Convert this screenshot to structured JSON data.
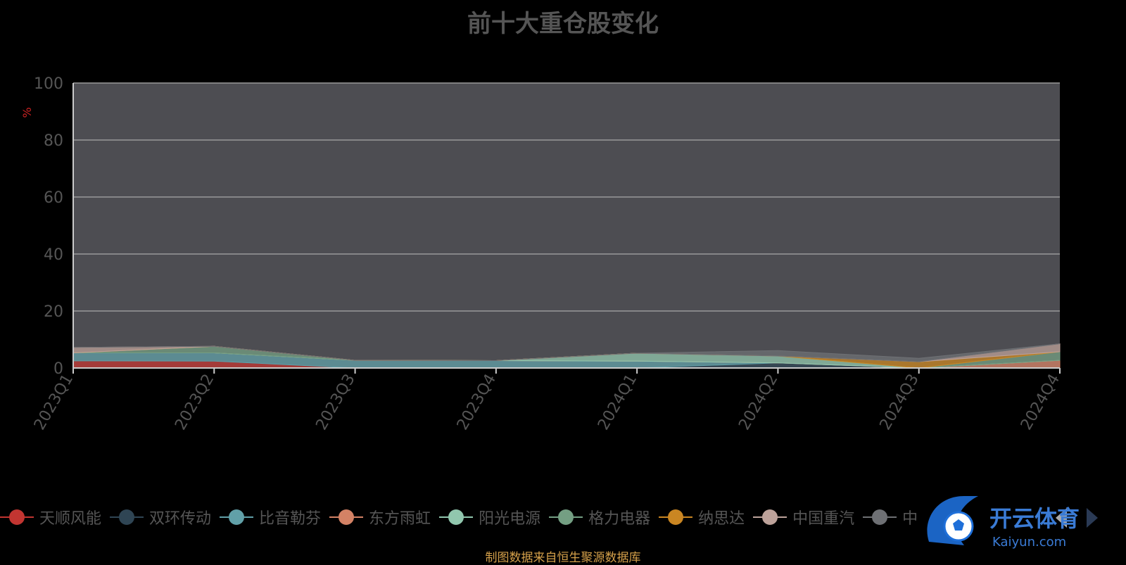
{
  "colors": {
    "background": "#000000",
    "plot_background": "#4d4d52",
    "grid": "#9a9a9a",
    "axis_text": "#555555",
    "unit_color": "#cc2222",
    "source_color": "#d4a04a"
  },
  "source_note": "制图数据来自恒生聚源数据库",
  "watermark": {
    "text": "开云体育",
    "subtext": "Kaiyun.com"
  },
  "legend_nav": {
    "prev_icon": "chevron-left-icon",
    "next_icon": "chevron-right-icon"
  },
  "chart_data": {
    "type": "area",
    "title": "前十大重仓股变化",
    "ylabel": "%",
    "xlabel": "",
    "ylim": [
      0,
      100
    ],
    "yticks": [
      0,
      20,
      40,
      60,
      80,
      100
    ],
    "stacked": true,
    "grid": true,
    "legend_position": "bottom",
    "categories": [
      "2023Q1",
      "2023Q2",
      "2023Q3",
      "2023Q4",
      "2024Q1",
      "2024Q2",
      "2024Q3",
      "2024Q4"
    ],
    "series": [
      {
        "name": "天顺风能",
        "color": "#c23531",
        "values": [
          2.5,
          2.4,
          0,
          0,
          0,
          0,
          0,
          0
        ]
      },
      {
        "name": "双环传动",
        "color": "#2f4554",
        "values": [
          0,
          0,
          0,
          0,
          0,
          1.8,
          0,
          0
        ]
      },
      {
        "name": "比音勒芬",
        "color": "#61a0a8",
        "values": [
          2.8,
          2.9,
          2.7,
          2.6,
          2.4,
          0,
          0,
          0
        ]
      },
      {
        "name": "东方雨虹",
        "color": "#d48265",
        "values": [
          0,
          0,
          0,
          0,
          0,
          0,
          0,
          2.7
        ]
      },
      {
        "name": "阳光电源",
        "color": "#91c7ae",
        "values": [
          0,
          0,
          0,
          0,
          2.8,
          2.4,
          0,
          0
        ]
      },
      {
        "name": "格力电器",
        "color": "#749f83",
        "values": [
          0,
          2.3,
          0,
          0,
          0,
          0,
          0,
          3.0
        ]
      },
      {
        "name": "纳思达",
        "color": "#ca8622",
        "values": [
          0,
          0,
          0,
          0,
          0,
          0,
          2.2,
          0
        ]
      },
      {
        "name": "中国重汽",
        "color": "#bda29a",
        "values": [
          1.9,
          0,
          0,
          0,
          0,
          0,
          0,
          2.8
        ]
      },
      {
        "name": "中",
        "color": "#6e7074",
        "values": [
          0,
          0,
          0,
          0,
          0,
          1.9,
          1.2,
          0
        ]
      }
    ]
  }
}
